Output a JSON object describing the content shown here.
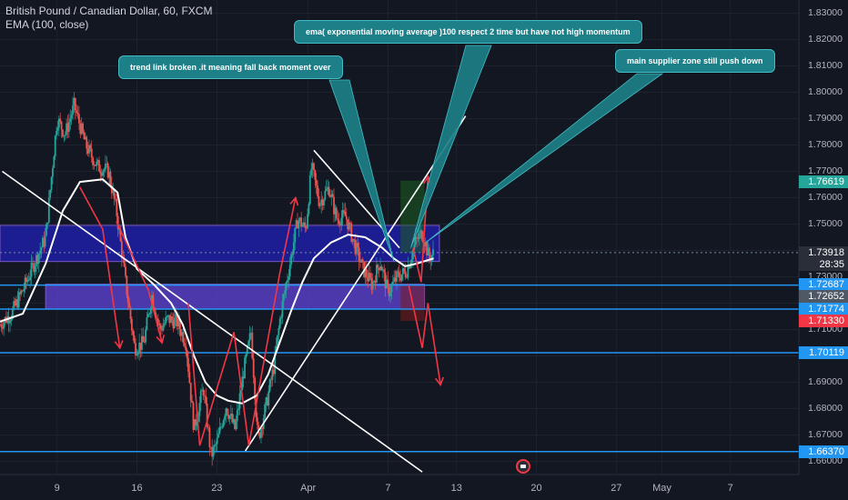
{
  "legend": {
    "symbol_line": "British Pound / Canadian Dollar, 60, FXCM",
    "indicator_line": "EMA (100, close)"
  },
  "annotations": {
    "trend": "trend link broken .it meaning fall back moment over",
    "ema": "ema( exponential moving average )100  respect  2 time but have not high momentum",
    "supply": "main supplier zone still push down"
  },
  "price_tags": [
    {
      "label": "1.76619",
      "color": "#26a69a"
    },
    {
      "label": "1.73918",
      "color": "#2a2e39"
    },
    {
      "label": "28:35",
      "color": "#2a2e39"
    },
    {
      "label": "1.72687",
      "color": "#2196f3"
    },
    {
      "label": "1.72652",
      "color": "#4f5966"
    },
    {
      "label": "1.71774",
      "color": "#2196f3"
    },
    {
      "label": "1.71330",
      "color": "#f23645"
    },
    {
      "label": "1.70119",
      "color": "#2196f3"
    },
    {
      "label": "1.66370",
      "color": "#2196f3"
    }
  ],
  "chart_data": {
    "type": "candlestick",
    "title": "British Pound / Canadian Dollar, 60, FXCM",
    "indicator": "EMA (100, close)",
    "ylim": [
      1.655,
      1.835
    ],
    "y_ticks": [
      1.66,
      1.67,
      1.68,
      1.69,
      1.7,
      1.71,
      1.72,
      1.73,
      1.74,
      1.75,
      1.76,
      1.77,
      1.78,
      1.79,
      1.8,
      1.81,
      1.82,
      1.83
    ],
    "x_ticks": [
      {
        "label": "9",
        "day": 9
      },
      {
        "label": "16",
        "day": 16
      },
      {
        "label": "23",
        "day": 23
      },
      {
        "label": "Apr",
        "day": 31
      },
      {
        "label": "7",
        "day": 38
      },
      {
        "label": "13",
        "day": 44
      },
      {
        "label": "20",
        "day": 51
      },
      {
        "label": "27",
        "day": 58
      },
      {
        "label": "May",
        "day": 62
      },
      {
        "label": "7",
        "day": 68
      }
    ],
    "x_range_days": [
      4,
      74
    ],
    "price_path": [
      [
        4.0,
        1.712
      ],
      [
        5.0,
        1.716
      ],
      [
        6.0,
        1.725
      ],
      [
        7.0,
        1.735
      ],
      [
        8.0,
        1.745
      ],
      [
        9.0,
        1.79
      ],
      [
        9.7,
        1.784
      ],
      [
        10.5,
        1.795
      ],
      [
        11.5,
        1.78
      ],
      [
        12.5,
        1.772
      ],
      [
        13.5,
        1.77
      ],
      [
        14.2,
        1.755
      ],
      [
        15.0,
        1.728
      ],
      [
        15.8,
        1.703
      ],
      [
        16.6,
        1.705
      ],
      [
        17.3,
        1.723
      ],
      [
        18.0,
        1.71
      ],
      [
        18.7,
        1.714
      ],
      [
        19.5,
        1.713
      ],
      [
        20.3,
        1.705
      ],
      [
        21.0,
        1.672
      ],
      [
        21.8,
        1.688
      ],
      [
        22.5,
        1.662
      ],
      [
        23.0,
        1.667
      ],
      [
        23.8,
        1.681
      ],
      [
        24.6,
        1.672
      ],
      [
        25.3,
        1.693
      ],
      [
        26.0,
        1.709
      ],
      [
        26.6,
        1.668
      ],
      [
        27.3,
        1.681
      ],
      [
        28.0,
        1.696
      ],
      [
        28.6,
        1.716
      ],
      [
        29.4,
        1.735
      ],
      [
        30.1,
        1.752
      ],
      [
        30.8,
        1.748
      ],
      [
        31.3,
        1.772
      ],
      [
        32.0,
        1.758
      ],
      [
        32.8,
        1.764
      ],
      [
        33.5,
        1.752
      ],
      [
        34.3,
        1.753
      ],
      [
        35.0,
        1.743
      ],
      [
        35.8,
        1.733
      ],
      [
        36.6,
        1.727
      ],
      [
        37.3,
        1.736
      ],
      [
        38.0,
        1.724
      ],
      [
        38.8,
        1.73
      ],
      [
        39.6,
        1.732
      ],
      [
        40.4,
        1.743
      ],
      [
        41.0,
        1.747
      ],
      [
        41.6,
        1.737
      ],
      [
        42.0,
        1.739
      ]
    ],
    "ema100_path": [
      [
        4.0,
        1.713
      ],
      [
        6.0,
        1.716
      ],
      [
        8.0,
        1.735
      ],
      [
        9.5,
        1.755
      ],
      [
        11.0,
        1.766
      ],
      [
        13.0,
        1.767
      ],
      [
        14.3,
        1.762
      ],
      [
        15.0,
        1.745
      ],
      [
        16.0,
        1.733
      ],
      [
        17.5,
        1.727
      ],
      [
        19.0,
        1.72
      ],
      [
        20.0,
        1.712
      ],
      [
        21.0,
        1.7
      ],
      [
        22.0,
        1.69
      ],
      [
        23.0,
        1.685
      ],
      [
        24.0,
        1.683
      ],
      [
        25.2,
        1.682
      ],
      [
        26.5,
        1.685
      ],
      [
        27.5,
        1.693
      ],
      [
        28.5,
        1.705
      ],
      [
        29.5,
        1.717
      ],
      [
        30.5,
        1.728
      ],
      [
        31.5,
        1.737
      ],
      [
        33.0,
        1.743
      ],
      [
        34.5,
        1.746
      ],
      [
        36.0,
        1.745
      ],
      [
        37.5,
        1.741
      ],
      [
        38.5,
        1.737
      ],
      [
        39.5,
        1.734
      ],
      [
        40.5,
        1.735
      ],
      [
        42.0,
        1.737
      ]
    ],
    "zones": [
      {
        "name": "upper supply zone",
        "y": [
          1.7358,
          1.7495
        ],
        "x": [
          4.0,
          42.5
        ],
        "color": "#1f1fa8"
      },
      {
        "name": "lower supply zone",
        "y": [
          1.7178,
          1.7272
        ],
        "x": [
          8.0,
          41.2
        ],
        "color": "#5a3fc9"
      }
    ],
    "position_boxes": [
      {
        "name": "profit zone",
        "y": [
          1.7391,
          1.7665
        ],
        "x": [
          39.1,
          41.2
        ],
        "color": "#1b5e20"
      },
      {
        "name": "loss zone",
        "y": [
          1.7133,
          1.7269
        ],
        "x": [
          39.1,
          41.2
        ],
        "color": "#7b1c1c"
      }
    ],
    "horizontal_levels": [
      {
        "value": 1.72687,
        "color": "#2196f3"
      },
      {
        "value": 1.71774,
        "color": "#2196f3"
      },
      {
        "value": 1.70119,
        "color": "#2196f3"
      },
      {
        "value": 1.6637,
        "color": "#2196f3"
      },
      {
        "value": 1.73918,
        "color": "#78909c",
        "dashed": true
      }
    ],
    "trend_lines": [
      {
        "from": [
          4.2,
          1.77
        ],
        "to": [
          41.0,
          1.656
        ],
        "color": "#ffffff"
      },
      {
        "from": [
          31.5,
          1.778
        ],
        "to": [
          39.0,
          1.741
        ],
        "color": "#ffffff"
      },
      {
        "from": [
          25.5,
          1.664
        ],
        "to": [
          44.8,
          1.791
        ],
        "color": "#ffffff"
      }
    ],
    "projection_arrows": [
      [
        [
          11.0,
          1.764
        ],
        [
          13.0,
          1.748
        ],
        [
          14.5,
          1.703
        ]
      ],
      [
        [
          14.2,
          1.751
        ],
        [
          17.0,
          1.725
        ],
        [
          18.2,
          1.705
        ]
      ],
      [
        [
          20.5,
          1.72
        ],
        [
          21.5,
          1.666
        ],
        [
          24.5,
          1.709
        ],
        [
          25.8,
          1.666
        ],
        [
          28.5,
          1.731
        ],
        [
          29.9,
          1.76
        ]
      ],
      [
        [
          40.2,
          1.741
        ],
        [
          40.9,
          1.728
        ],
        [
          41.5,
          1.768
        ]
      ],
      [
        [
          39.8,
          1.727
        ],
        [
          41.0,
          1.703
        ],
        [
          41.5,
          1.72
        ],
        [
          42.6,
          1.689
        ]
      ]
    ],
    "callout_pointers": [
      {
        "to": [
          38.5,
          1.736
        ],
        "from_box": "trend"
      },
      {
        "to": [
          40.0,
          1.741
        ],
        "from_box": "ema"
      },
      {
        "to": [
          41.3,
          1.743
        ],
        "from_box": "supply"
      }
    ]
  }
}
